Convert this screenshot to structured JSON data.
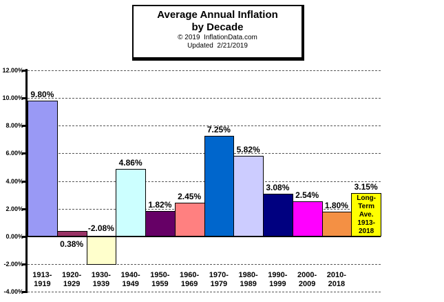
{
  "title_box": {
    "line1": "Average Annual Inflation",
    "line2": "by Decade",
    "line3": "© 2019  InflationData.com",
    "line4": "Updated  2/21/2019"
  },
  "chart_data": {
    "type": "bar",
    "title": "Average Annual Inflation by Decade",
    "source_line": "© 2019 InflationData.com",
    "updated_line": "Updated 2/21/2019",
    "categories": [
      "1913-\n1919",
      "1920-\n1929",
      "1930-\n1939",
      "1940-\n1949",
      "1950-\n1959",
      "1960-\n1969",
      "1970-\n1979",
      "1980-\n1989",
      "1990-\n1999",
      "2000-\n2009",
      "2010-\n2018",
      ""
    ],
    "values": [
      9.8,
      0.38,
      -2.08,
      4.86,
      1.82,
      2.45,
      7.25,
      5.82,
      3.08,
      2.54,
      1.8,
      3.15
    ],
    "value_labels": [
      "9.80%",
      "0.38%",
      "-2.08%",
      "4.86%",
      "1.82%",
      "2.45%",
      "7.25%",
      "5.82%",
      "3.08%",
      "2.54%",
      "1.80%",
      "3.15%"
    ],
    "bar_colors": [
      "#9999F5",
      "#993366",
      "#FFFFCC",
      "#CCFFFF",
      "#660066",
      "#FF8080",
      "#0066CC",
      "#CCCCFF",
      "#000080",
      "#FF00FF",
      "#F49044",
      "#FFFF00"
    ],
    "last_bar_inner_label": "Long-\nTerm\nAve.\n1913-\n2018",
    "xlabel": "",
    "ylabel": "",
    "ylim": [
      -4,
      12
    ],
    "y_step": 2,
    "y_tick_labels": [
      "12.00%",
      "10.00%",
      "8.00%",
      "6.00%",
      "4.00%",
      "2.00%",
      "0.00%",
      "-2.00%",
      "-4.00%"
    ],
    "grid": "horizontal-dashed",
    "legend": "none",
    "gap_width": 0
  }
}
